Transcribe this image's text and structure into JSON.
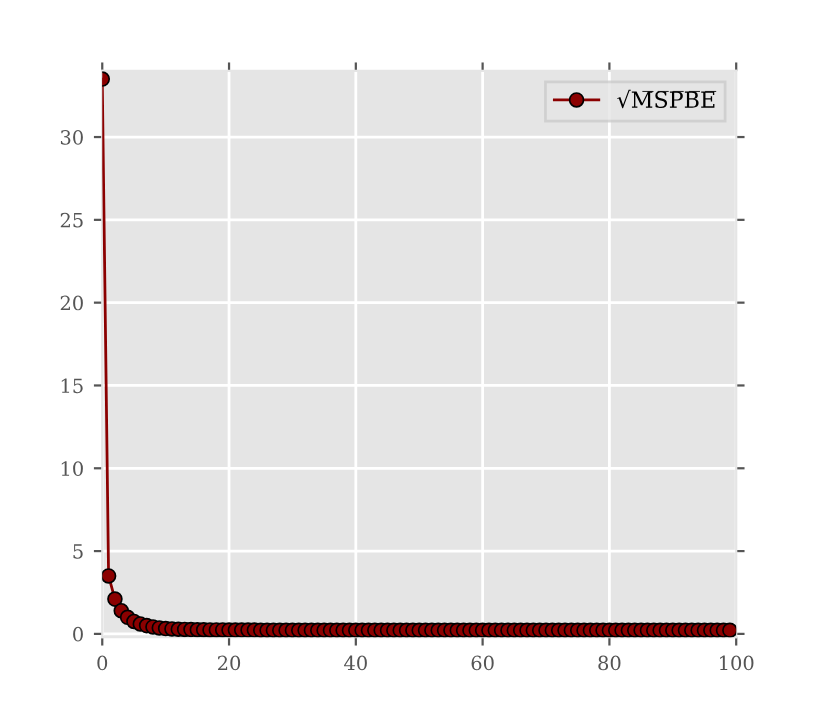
{
  "chart_data": {
    "type": "line",
    "x": [
      0,
      1,
      2,
      3,
      4,
      5,
      6,
      7,
      8,
      9,
      10,
      11,
      12,
      13,
      14,
      15,
      16,
      17,
      18,
      19,
      20,
      21,
      22,
      23,
      24,
      25,
      26,
      27,
      28,
      29,
      30,
      31,
      32,
      33,
      34,
      35,
      36,
      37,
      38,
      39,
      40,
      41,
      42,
      43,
      44,
      45,
      46,
      47,
      48,
      49,
      50,
      51,
      52,
      53,
      54,
      55,
      56,
      57,
      58,
      59,
      60,
      61,
      62,
      63,
      64,
      65,
      66,
      67,
      68,
      69,
      70,
      71,
      72,
      73,
      74,
      75,
      76,
      77,
      78,
      79,
      80,
      81,
      82,
      83,
      84,
      85,
      86,
      87,
      88,
      89,
      90,
      91,
      92,
      93,
      94,
      95,
      96,
      97,
      98,
      99
    ],
    "series": [
      {
        "name": "√M̅S̅P̅B̅E̅",
        "color": "#8b0000",
        "values": [
          33.5,
          3.5,
          2.1,
          1.4,
          1.0,
          0.75,
          0.6,
          0.5,
          0.42,
          0.36,
          0.32,
          0.3,
          0.28,
          0.27,
          0.26,
          0.25,
          0.25,
          0.24,
          0.24,
          0.24,
          0.23,
          0.23,
          0.23,
          0.23,
          0.23,
          0.22,
          0.22,
          0.22,
          0.22,
          0.22,
          0.22,
          0.22,
          0.22,
          0.22,
          0.22,
          0.22,
          0.22,
          0.22,
          0.22,
          0.22,
          0.22,
          0.22,
          0.22,
          0.22,
          0.22,
          0.22,
          0.22,
          0.22,
          0.22,
          0.22,
          0.22,
          0.22,
          0.22,
          0.22,
          0.22,
          0.22,
          0.22,
          0.22,
          0.22,
          0.22,
          0.22,
          0.22,
          0.22,
          0.22,
          0.22,
          0.22,
          0.22,
          0.22,
          0.22,
          0.22,
          0.22,
          0.22,
          0.22,
          0.22,
          0.22,
          0.22,
          0.22,
          0.22,
          0.22,
          0.22,
          0.22,
          0.22,
          0.22,
          0.22,
          0.22,
          0.22,
          0.22,
          0.22,
          0.22,
          0.22,
          0.22,
          0.22,
          0.22,
          0.22,
          0.22,
          0.22,
          0.22,
          0.22,
          0.22,
          0.22
        ]
      }
    ],
    "xlim": [
      0,
      100
    ],
    "xticks": [
      0,
      20,
      40,
      60,
      80,
      100
    ],
    "ylim": [
      -0.2,
      34
    ],
    "yticks": [
      0,
      5,
      10,
      15,
      20,
      25,
      30
    ],
    "grid": true,
    "legend": "top right",
    "marker": "circle",
    "line_style": "solid"
  }
}
